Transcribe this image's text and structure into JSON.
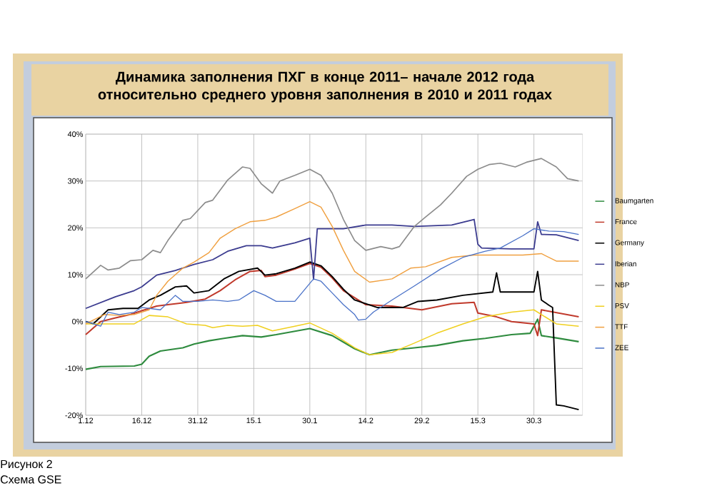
{
  "chart_data": {
    "type": "line",
    "title": "Динамика заполнения ПХГ в конце 2011– начале 2012 года относительно среднего уровня заполнения в 2010 и 2011 годах",
    "annotations": [
      "Рисунок 2",
      "Схема GSE"
    ],
    "xlim": [
      "2011-12-01",
      "2012-04-12"
    ],
    "xticks": [
      {
        "value": "2011-12-01",
        "label": "1.12"
      },
      {
        "value": "2011-12-16",
        "label": "16.12"
      },
      {
        "value": "2011-12-31",
        "label": "31.12"
      },
      {
        "value": "2012-01-15",
        "label": "15.1"
      },
      {
        "value": "2012-01-30",
        "label": "30.1"
      },
      {
        "value": "2012-02-14",
        "label": "14.2"
      },
      {
        "value": "2012-02-29",
        "label": "29.2"
      },
      {
        "value": "2012-03-15",
        "label": "15.3"
      },
      {
        "value": "2012-03-30",
        "label": "30.3"
      }
    ],
    "ylim": [
      -20,
      40
    ],
    "yticks": [
      {
        "value": -20,
        "label": "-20%"
      },
      {
        "value": -10,
        "label": "-10%"
      },
      {
        "value": 0,
        "label": "0%"
      },
      {
        "value": 10,
        "label": "10%"
      },
      {
        "value": 20,
        "label": "20%"
      },
      {
        "value": 30,
        "label": "30%"
      },
      {
        "value": 40,
        "label": "40%"
      }
    ],
    "grid": true,
    "legend": "right",
    "series": [
      {
        "name": "Baumgarten",
        "color": "#2e8b3e",
        "x": [
          "2011-12-01",
          "2011-12-05",
          "2011-12-14",
          "2011-12-16",
          "2011-12-18",
          "2011-12-21",
          "2011-12-27",
          "2011-12-30",
          "2012-01-03",
          "2012-01-07",
          "2012-01-12",
          "2012-01-17",
          "2012-01-21",
          "2012-01-30",
          "2012-02-05",
          "2012-02-11",
          "2012-02-15",
          "2012-02-21",
          "2012-02-27",
          "2012-03-04",
          "2012-03-11",
          "2012-03-17",
          "2012-03-24",
          "2012-03-29",
          "2012-03-31",
          "2012-04-01",
          "2012-04-05",
          "2012-04-11"
        ],
        "values": [
          -10.2,
          -9.6,
          -9.5,
          -9.1,
          -7.4,
          -6.3,
          -5.6,
          -4.8,
          -4.1,
          -3.6,
          -3,
          -3.3,
          -2.8,
          -1.5,
          -3,
          -5.8,
          -7.1,
          -6.1,
          -5.6,
          -5.1,
          -4.1,
          -3.6,
          -2.8,
          -2.5,
          0.5,
          -3,
          -3.5,
          -4.3
        ]
      },
      {
        "name": "France",
        "color": "#c0392b",
        "x": [
          "2011-12-01",
          "2011-12-05",
          "2011-12-09",
          "2011-12-13",
          "2011-12-16",
          "2011-12-20",
          "2011-12-23",
          "2011-12-28",
          "2012-01-02",
          "2012-01-06",
          "2012-01-10",
          "2012-01-14",
          "2012-01-17",
          "2012-01-18",
          "2012-01-21",
          "2012-01-26",
          "2012-01-30",
          "2012-02-02",
          "2012-02-05",
          "2012-02-08",
          "2012-02-14",
          "2012-02-21",
          "2012-02-29",
          "2012-03-08",
          "2012-03-14",
          "2012-03-15",
          "2012-03-20",
          "2012-03-24",
          "2012-03-30",
          "2012-03-31",
          "2012-04-01",
          "2012-04-11"
        ],
        "values": [
          -2.8,
          0,
          0.8,
          1.5,
          2.3,
          3.3,
          3.6,
          4.1,
          4.8,
          6.6,
          8.9,
          10.7,
          10.9,
          9.6,
          9.9,
          11.2,
          12.4,
          11.6,
          9.3,
          6.6,
          3.6,
          3.3,
          2.5,
          3.8,
          4.1,
          1.8,
          1,
          0,
          -0.5,
          -3,
          2.5,
          1
        ]
      },
      {
        "name": "Germany",
        "color": "#000000",
        "x": [
          "2011-12-01",
          "2011-12-03",
          "2011-12-07",
          "2011-12-11",
          "2011-12-15",
          "2011-12-18",
          "2011-12-21",
          "2011-12-25",
          "2011-12-28",
          "2011-12-30",
          "2012-01-03",
          "2012-01-07",
          "2012-01-11",
          "2012-01-16",
          "2012-01-18",
          "2012-01-21",
          "2012-01-26",
          "2012-01-30",
          "2012-02-02",
          "2012-02-05",
          "2012-02-08",
          "2012-02-11",
          "2012-02-14",
          "2012-02-17",
          "2012-02-24",
          "2012-02-28",
          "2012-03-04",
          "2012-03-11",
          "2012-03-19",
          "2012-03-20",
          "2012-03-21",
          "2012-03-30",
          "2012-03-31",
          "2012-04-01",
          "2012-04-03",
          "2012-04-04",
          "2012-04-05",
          "2012-04-07",
          "2012-04-11"
        ],
        "values": [
          0,
          -0.5,
          2.5,
          2.8,
          2.8,
          4.6,
          5.6,
          7.4,
          7.6,
          6.1,
          6.6,
          9.1,
          10.7,
          11.4,
          9.9,
          10.2,
          11.4,
          12.7,
          11.9,
          9.6,
          6.9,
          4.6,
          3.8,
          3,
          3,
          4.3,
          4.6,
          5.6,
          6.3,
          10.4,
          6.3,
          6.3,
          10.7,
          4.6,
          3.5,
          3,
          -17.8,
          -18,
          -18.8
        ]
      },
      {
        "name": "Iberian",
        "color": "#3b3b8f",
        "x": [
          "2011-12-01",
          "2011-12-09",
          "2011-12-14",
          "2011-12-16",
          "2011-12-20",
          "2011-12-25",
          "2011-12-30",
          "2012-01-04",
          "2012-01-08",
          "2012-01-13",
          "2012-01-17",
          "2012-01-20",
          "2012-01-26",
          "2012-01-30",
          "2012-01-31",
          "2012-02-01",
          "2012-02-08",
          "2012-02-14",
          "2012-02-21",
          "2012-02-27",
          "2012-03-08",
          "2012-03-14",
          "2012-03-15",
          "2012-03-16",
          "2012-03-24",
          "2012-03-30",
          "2012-03-31",
          "2012-04-01",
          "2012-04-05",
          "2012-04-11"
        ],
        "values": [
          2.8,
          5.3,
          6.6,
          7.4,
          9.9,
          10.9,
          12.2,
          13.2,
          15,
          16.2,
          16.2,
          15.7,
          16.8,
          17.8,
          9,
          19.8,
          19.8,
          20.6,
          20.6,
          20.3,
          20.6,
          21.8,
          16.5,
          15.7,
          15.5,
          15.5,
          21.3,
          18.6,
          18.5,
          17.3
        ]
      },
      {
        "name": "NBP",
        "color": "#8c8c8c",
        "x": [
          "2011-12-01",
          "2011-12-05",
          "2011-12-07",
          "2011-12-10",
          "2011-12-13",
          "2011-12-16",
          "2011-12-19",
          "2011-12-21",
          "2011-12-23",
          "2011-12-27",
          "2011-12-29",
          "2012-01-02",
          "2012-01-04",
          "2012-01-08",
          "2012-01-12",
          "2012-01-14",
          "2012-01-17",
          "2012-01-20",
          "2012-01-22",
          "2012-01-26",
          "2012-01-30",
          "2012-02-02",
          "2012-02-05",
          "2012-02-08",
          "2012-02-11",
          "2012-02-14",
          "2012-02-18",
          "2012-02-21",
          "2012-02-23",
          "2012-02-27",
          "2012-03-01",
          "2012-03-05",
          "2012-03-08",
          "2012-03-12",
          "2012-03-15",
          "2012-03-18",
          "2012-03-21",
          "2012-03-25",
          "2012-03-28",
          "2012-04-01",
          "2012-04-05",
          "2012-04-08",
          "2012-04-11"
        ],
        "values": [
          9.1,
          12,
          11,
          11.4,
          13,
          13.2,
          15.2,
          14.7,
          17.3,
          21.6,
          22,
          25.4,
          25.9,
          30.2,
          33,
          32.7,
          29.4,
          27.4,
          30,
          31.2,
          32.5,
          31.2,
          27.4,
          21.8,
          17.3,
          15.2,
          16,
          15.5,
          16,
          20.3,
          22.3,
          24.9,
          27.4,
          31,
          32.5,
          33.5,
          33.8,
          33,
          34,
          34.8,
          33,
          30.5,
          30
        ]
      },
      {
        "name": "PSV",
        "color": "#f0d020",
        "x": [
          "2011-12-01",
          "2011-12-07",
          "2011-12-14",
          "2011-12-18",
          "2011-12-23",
          "2011-12-28",
          "2012-01-02",
          "2012-01-04",
          "2012-01-08",
          "2012-01-12",
          "2012-01-16",
          "2012-01-20",
          "2012-01-26",
          "2012-01-30",
          "2012-02-05",
          "2012-02-11",
          "2012-02-15",
          "2012-02-21",
          "2012-02-27",
          "2012-03-04",
          "2012-03-11",
          "2012-03-17",
          "2012-03-24",
          "2012-03-30",
          "2012-04-01",
          "2012-04-05",
          "2012-04-11"
        ],
        "values": [
          -0.5,
          -0.5,
          -0.5,
          1.3,
          1,
          -0.5,
          -0.8,
          -1.3,
          -0.8,
          -1,
          -0.8,
          -2,
          -1,
          -0.3,
          -2.5,
          -5.6,
          -7.1,
          -6.6,
          -4.6,
          -2.5,
          -0.5,
          1,
          2,
          2.5,
          1.5,
          -0.5,
          -1
        ]
      },
      {
        "name": "TTF",
        "color": "#f0a040",
        "x": [
          "2011-12-01",
          "2011-12-06",
          "2011-12-10",
          "2011-12-14",
          "2011-12-18",
          "2011-12-20",
          "2011-12-23",
          "2011-12-27",
          "2011-12-30",
          "2012-01-03",
          "2012-01-06",
          "2012-01-10",
          "2012-01-14",
          "2012-01-18",
          "2012-01-21",
          "2012-01-26",
          "2012-01-30",
          "2012-02-02",
          "2012-02-05",
          "2012-02-08",
          "2012-02-11",
          "2012-02-15",
          "2012-02-21",
          "2012-02-26",
          "2012-03-01",
          "2012-03-08",
          "2012-03-14",
          "2012-03-20",
          "2012-03-27",
          "2012-04-01",
          "2012-04-05",
          "2012-04-11"
        ],
        "values": [
          -0.5,
          1.5,
          1.3,
          1.5,
          2.5,
          5.6,
          8.6,
          11.4,
          12.7,
          14.7,
          17.8,
          19.8,
          21.3,
          21.6,
          22.3,
          24.1,
          25.6,
          24.4,
          20.3,
          15.2,
          10.7,
          8.4,
          9.1,
          11.4,
          11.7,
          13.7,
          14.2,
          14.2,
          14.2,
          14.5,
          12.9,
          12.9
        ]
      },
      {
        "name": "ZEE",
        "color": "#4a72c8",
        "x": [
          "2011-12-01",
          "2011-12-05",
          "2011-12-07",
          "2011-12-10",
          "2011-12-14",
          "2011-12-16",
          "2011-12-21",
          "2011-12-25",
          "2011-12-27",
          "2011-12-31",
          "2012-01-04",
          "2012-01-08",
          "2012-01-11",
          "2012-01-15",
          "2012-01-18",
          "2012-01-21",
          "2012-01-26",
          "2012-01-31",
          "2012-02-02",
          "2012-02-05",
          "2012-02-08",
          "2012-02-11",
          "2012-02-12",
          "2012-02-14",
          "2012-02-16",
          "2012-02-21",
          "2012-02-27",
          "2012-03-05",
          "2012-03-11",
          "2012-03-17",
          "2012-03-21",
          "2012-03-27",
          "2012-03-30",
          "2012-04-03",
          "2012-04-07",
          "2012-04-11"
        ],
        "values": [
          0,
          -1,
          2,
          1.5,
          2,
          3,
          2.5,
          5.6,
          4.3,
          4.3,
          4.6,
          4.3,
          4.6,
          6.6,
          5.6,
          4.3,
          4.3,
          9.1,
          8.6,
          6.1,
          3.6,
          1.5,
          0.3,
          0.5,
          2,
          4.6,
          7.6,
          11.2,
          13.7,
          15,
          15.7,
          18.3,
          19.8,
          19.3,
          19.2,
          18.6
        ]
      }
    ]
  }
}
